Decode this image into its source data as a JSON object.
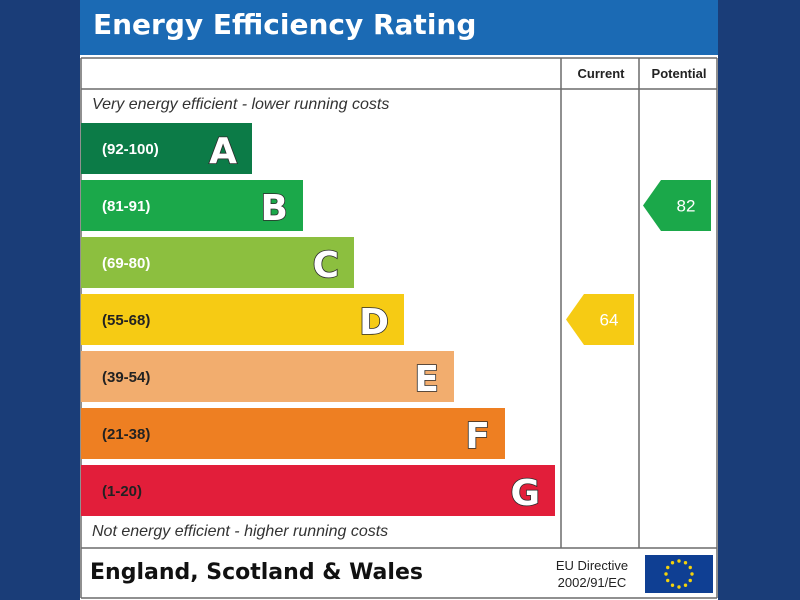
{
  "header": {
    "title": "Energy Efficiency Rating"
  },
  "columns": {
    "current_label": "Current",
    "potential_label": "Potential"
  },
  "captions": {
    "top": "Very energy efficient - lower running costs",
    "bottom": "Not energy efficient - higher running costs"
  },
  "footer": {
    "region": "England, Scotland & Wales",
    "directive_line1": "EU Directive",
    "directive_line2": "2002/91/EC"
  },
  "colors": {
    "header_bg": "#1b6ab4",
    "page_bg": "#1a3d78",
    "eu_flag": "#0f3f93",
    "eu_star": "#f4d20c"
  },
  "chart_data": {
    "type": "bar",
    "bands": [
      {
        "letter": "A",
        "range": "(92-100)",
        "min": 92,
        "max": 100,
        "color": "#0c7b47"
      },
      {
        "letter": "B",
        "range": "(81-91)",
        "min": 81,
        "max": 91,
        "color": "#1ba84a"
      },
      {
        "letter": "C",
        "range": "(69-80)",
        "min": 69,
        "max": 80,
        "color": "#8cbf3f"
      },
      {
        "letter": "D",
        "range": "(55-68)",
        "min": 55,
        "max": 68,
        "color": "#f6cb14"
      },
      {
        "letter": "E",
        "range": "(39-54)",
        "min": 39,
        "max": 54,
        "color": "#f2ad6e"
      },
      {
        "letter": "F",
        "range": "(21-38)",
        "min": 21,
        "max": 38,
        "color": "#ee7f22"
      },
      {
        "letter": "G",
        "range": "(1-20)",
        "min": 1,
        "max": 20,
        "color": "#e21e3a"
      }
    ],
    "current": {
      "value": 64,
      "band": "D"
    },
    "potential": {
      "value": 82,
      "band": "B"
    }
  }
}
